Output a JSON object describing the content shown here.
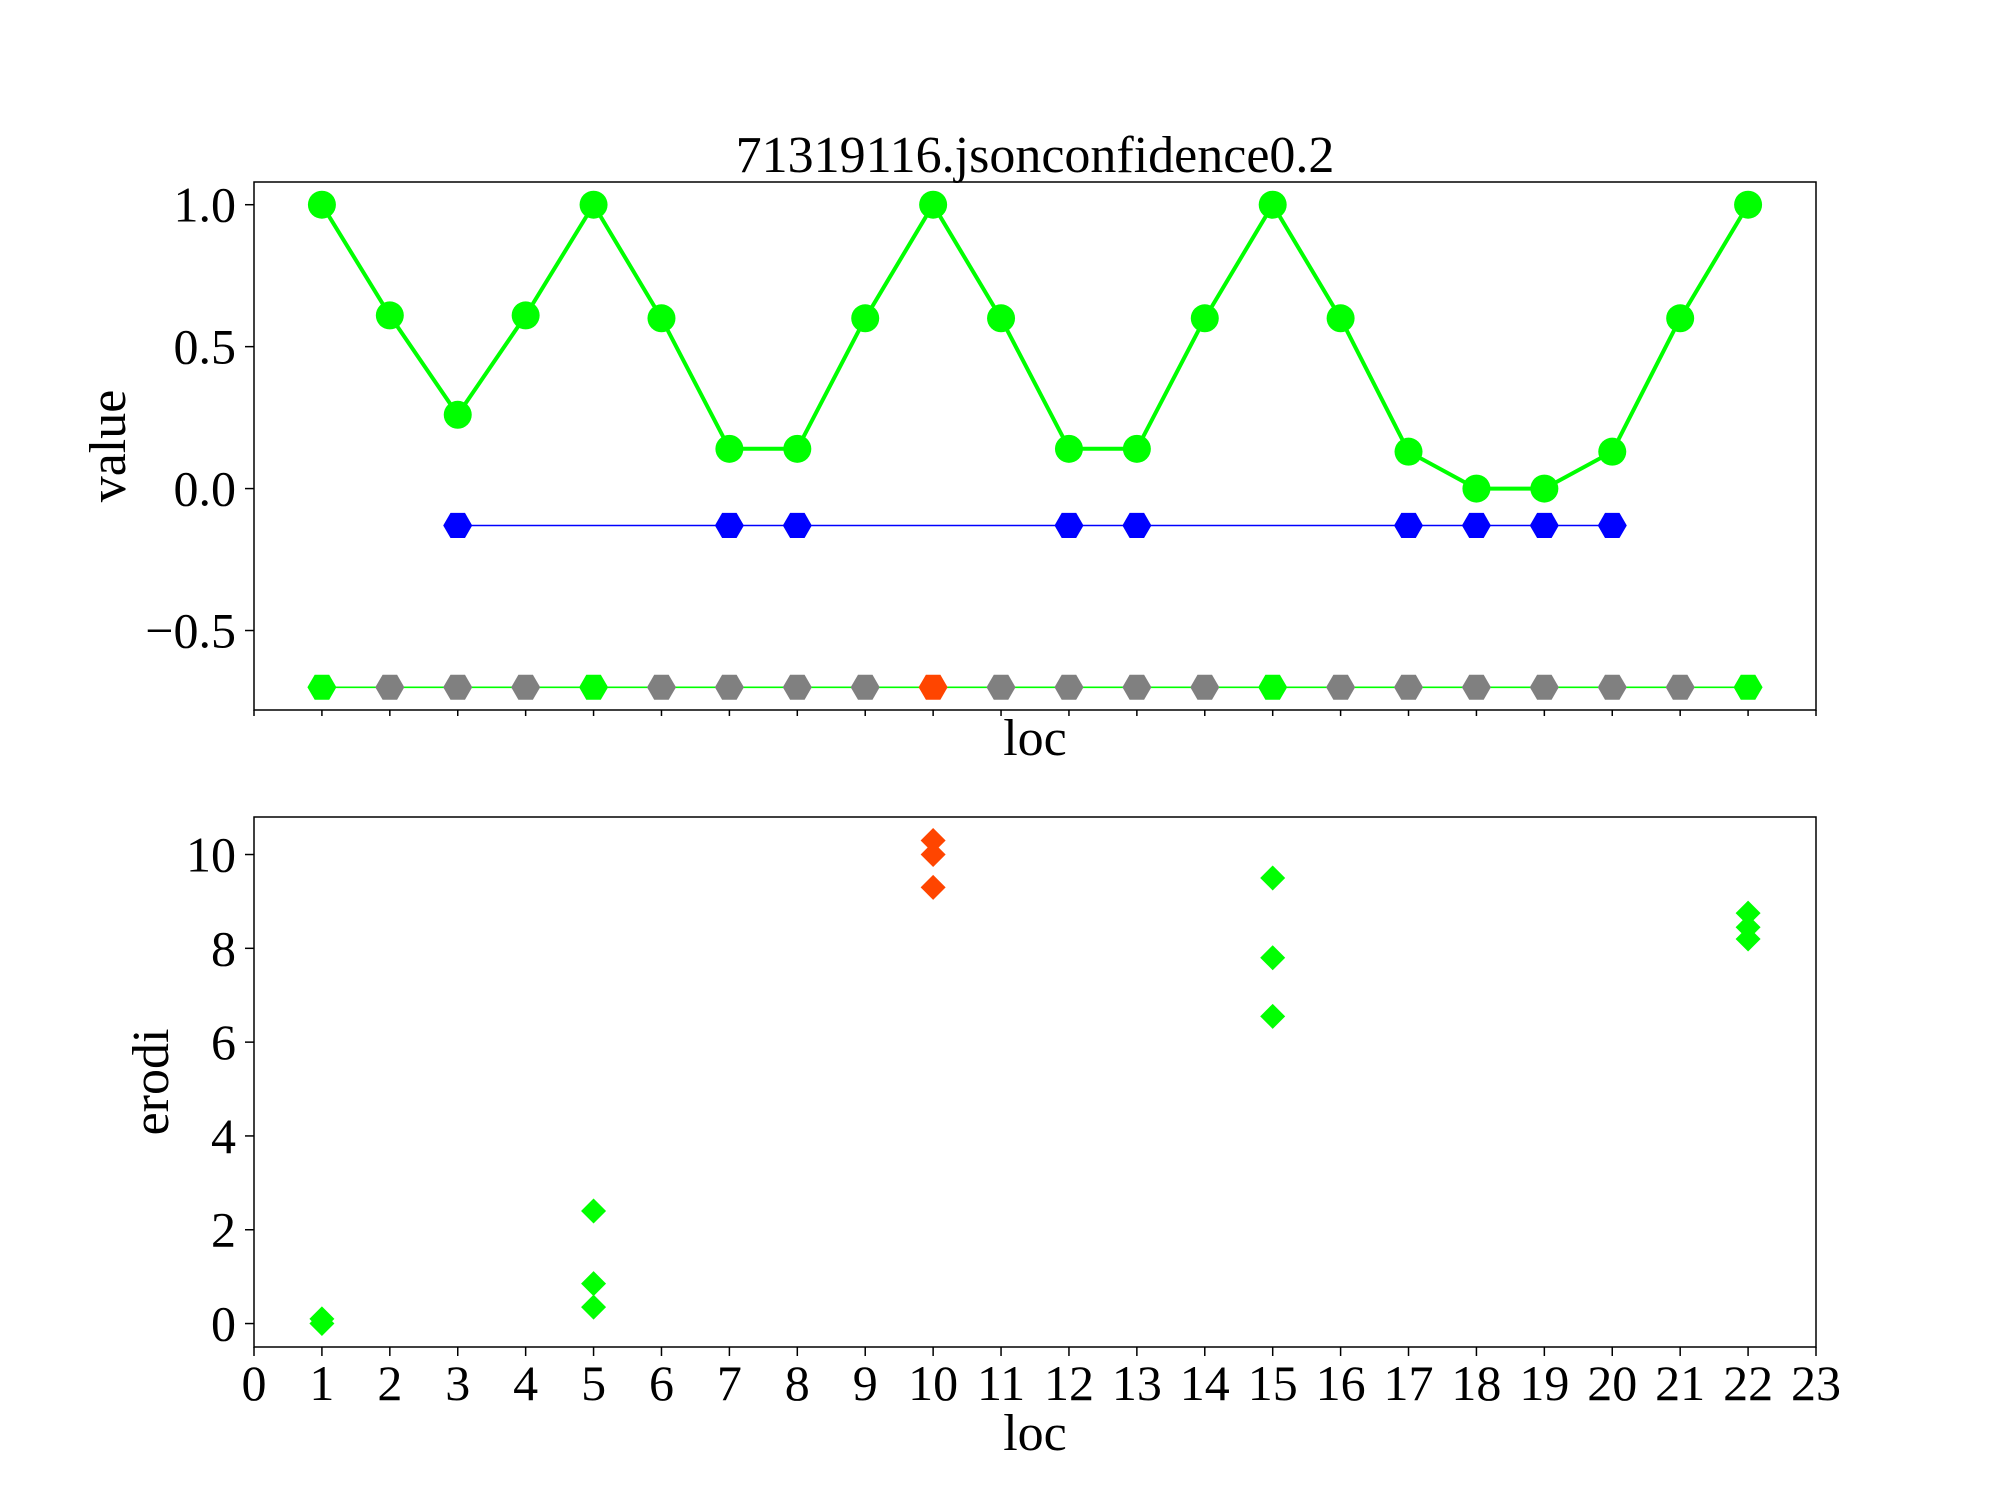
{
  "chart_data": [
    {
      "type": "line",
      "title": "71319116.jsonconfidence0.2",
      "xlabel": "loc",
      "ylabel": "value",
      "xlim": [
        0,
        23
      ],
      "ylim": [
        -0.78,
        1.08
      ],
      "yticks": [
        -0.5,
        0.0,
        0.5,
        1.0
      ],
      "ytick_labels": [
        "−0.5",
        "0.0",
        "0.5",
        "1.0"
      ],
      "xtick_labels_shown": false,
      "grid": false,
      "series": [
        {
          "color": "#00ff00",
          "marker": "circle",
          "x": [
            1,
            2,
            3,
            4,
            5,
            6,
            7,
            8,
            9,
            10,
            11,
            12,
            13,
            14,
            15,
            16,
            17,
            18,
            19,
            20,
            21,
            22
          ],
          "y": [
            1.0,
            0.61,
            0.26,
            0.61,
            1.0,
            0.6,
            0.14,
            0.14,
            0.6,
            1.0,
            0.6,
            0.14,
            0.14,
            0.6,
            1.0,
            0.6,
            0.13,
            0.0,
            0.0,
            0.13,
            0.6,
            1.0
          ]
        },
        {
          "color": "#0000ff",
          "marker": "hexagon",
          "x": [
            3,
            7,
            8,
            12,
            13,
            17,
            18,
            19,
            20
          ],
          "y": [
            -0.13,
            -0.13,
            -0.13,
            -0.13,
            -0.13,
            -0.13,
            -0.13,
            -0.13,
            -0.13
          ]
        },
        {
          "color": "#00ff00",
          "line_color": "#00ff00",
          "marker": "hexagon",
          "x": [
            1,
            2,
            3,
            4,
            5,
            6,
            7,
            8,
            9,
            10,
            11,
            12,
            13,
            14,
            15,
            16,
            17,
            18,
            19,
            20,
            21,
            22
          ],
          "y": [
            -0.7,
            -0.7,
            -0.7,
            -0.7,
            -0.7,
            -0.7,
            -0.7,
            -0.7,
            -0.7,
            -0.7,
            -0.7,
            -0.7,
            -0.7,
            -0.7,
            -0.7,
            -0.7,
            -0.7,
            -0.7,
            -0.7,
            -0.7,
            -0.7,
            -0.7
          ],
          "point_colors": [
            "#00ff00",
            "#808080",
            "#808080",
            "#808080",
            "#00ff00",
            "#808080",
            "#808080",
            "#808080",
            "#808080",
            "#ff4500",
            "#808080",
            "#808080",
            "#808080",
            "#808080",
            "#00ff00",
            "#808080",
            "#808080",
            "#808080",
            "#808080",
            "#808080",
            "#808080",
            "#00ff00"
          ]
        }
      ]
    },
    {
      "type": "scatter",
      "title": "",
      "xlabel": "loc",
      "ylabel": "erodi",
      "xlim": [
        0,
        23
      ],
      "ylim": [
        -0.5,
        10.8
      ],
      "xticks": [
        0,
        1,
        2,
        3,
        4,
        5,
        6,
        7,
        8,
        9,
        10,
        11,
        12,
        13,
        14,
        15,
        16,
        17,
        18,
        19,
        20,
        21,
        22,
        23
      ],
      "xtick_labels": [
        "0",
        "1",
        "2",
        "3",
        "4",
        "5",
        "6",
        "7",
        "8",
        "9",
        "10",
        "11",
        "12",
        "13",
        "14",
        "15",
        "16",
        "17",
        "18",
        "19",
        "20",
        "21",
        "22",
        "23"
      ],
      "yticks": [
        0,
        2,
        4,
        6,
        8,
        10
      ],
      "ytick_labels": [
        "0",
        "2",
        "4",
        "6",
        "8",
        "10"
      ],
      "grid": false,
      "marker": "diamond",
      "points": [
        {
          "x": 1,
          "y": 0.1,
          "color": "#00ff00"
        },
        {
          "x": 1,
          "y": 0.0,
          "color": "#00ff00"
        },
        {
          "x": 5,
          "y": 2.4,
          "color": "#00ff00"
        },
        {
          "x": 5,
          "y": 0.85,
          "color": "#00ff00"
        },
        {
          "x": 5,
          "y": 0.35,
          "color": "#00ff00"
        },
        {
          "x": 10,
          "y": 10.3,
          "color": "#ff4500"
        },
        {
          "x": 10,
          "y": 10.0,
          "color": "#ff4500"
        },
        {
          "x": 10,
          "y": 9.3,
          "color": "#ff4500"
        },
        {
          "x": 15,
          "y": 9.5,
          "color": "#00ff00"
        },
        {
          "x": 15,
          "y": 7.8,
          "color": "#00ff00"
        },
        {
          "x": 15,
          "y": 6.55,
          "color": "#00ff00"
        },
        {
          "x": 22,
          "y": 8.75,
          "color": "#00ff00"
        },
        {
          "x": 22,
          "y": 8.45,
          "color": "#00ff00"
        },
        {
          "x": 22,
          "y": 8.2,
          "color": "#00ff00"
        }
      ]
    }
  ]
}
